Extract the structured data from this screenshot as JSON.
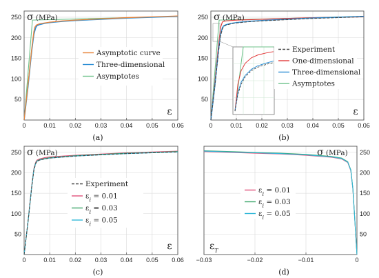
{
  "figure": {
    "background": "#ffffff",
    "frame_color": "#555555",
    "grid_color": "#d8d8d8"
  },
  "chart_data": [
    {
      "panel": "a",
      "sub_label": "(a)",
      "type": "line",
      "ylabel_symbol": "σ",
      "ylabel_unit": "(MPa)",
      "xlabel_symbol": "ε",
      "xlim": [
        0,
        0.06
      ],
      "ylim": [
        0,
        265
      ],
      "xticks": [
        0,
        0.01,
        0.02,
        0.03,
        0.04,
        0.05,
        0.06
      ],
      "xtick_labels": [
        "0",
        "0.01",
        "0.02",
        "0.03",
        "0.04",
        "0.05",
        "0.06"
      ],
      "yticks": [
        50,
        100,
        150,
        200,
        250
      ],
      "ytick_labels": [
        "50",
        "100",
        "150",
        "200",
        "250"
      ],
      "yaxis_side": "left",
      "grid": true,
      "legend": [
        {
          "label": "Asymptotic curve",
          "color": "#e8843a"
        },
        {
          "label": "Three-dimensional",
          "color": "#2d8fd5"
        },
        {
          "label": "Asymptotes",
          "color": "#6cc28a"
        }
      ],
      "series": [
        {
          "color": "#6cc28a",
          "width": 1.1,
          "dash": "",
          "x": [
            0,
            0.00325,
            0.06
          ],
          "y": [
            0,
            243,
            252
          ]
        },
        {
          "color": "#2d8fd5",
          "width": 1.6,
          "dash": "",
          "x": [
            0,
            0.0015,
            0.003,
            0.0038,
            0.0045,
            0.005,
            0.006,
            0.008,
            0.01,
            0.015,
            0.02,
            0.03,
            0.04,
            0.05,
            0.06
          ],
          "y": [
            0,
            80,
            170,
            208,
            224,
            229,
            232,
            235,
            237,
            240,
            242,
            245,
            248,
            250,
            252
          ]
        },
        {
          "color": "#e8843a",
          "width": 1.3,
          "dash": "",
          "x": [
            0,
            0.0015,
            0.003,
            0.0038,
            0.0042,
            0.0048,
            0.006,
            0.008,
            0.01,
            0.015,
            0.02,
            0.03,
            0.04,
            0.05,
            0.06
          ],
          "y": [
            0,
            85,
            175,
            215,
            226,
            231,
            234,
            236,
            238,
            241,
            243,
            246,
            249,
            251,
            253
          ]
        }
      ]
    },
    {
      "panel": "b",
      "sub_label": "(b)",
      "type": "line",
      "ylabel_symbol": "σ",
      "ylabel_unit": "(MPa)",
      "xlabel_symbol": "ε",
      "xlim": [
        0,
        0.06
      ],
      "ylim": [
        0,
        265
      ],
      "xticks": [
        0,
        0.01,
        0.02,
        0.03,
        0.04,
        0.05,
        0.06
      ],
      "xtick_labels": [
        "0",
        "0.01",
        "0.02",
        "0.03",
        "0.04",
        "0.05",
        "0.06"
      ],
      "yticks": [
        50,
        100,
        150,
        200,
        250
      ],
      "ytick_labels": [
        "50",
        "100",
        "150",
        "200",
        "250"
      ],
      "yaxis_side": "left",
      "grid": true,
      "legend": [
        {
          "label": "Experiment",
          "color": "#444444",
          "dash": "4,2"
        },
        {
          "label": "One-dimensional",
          "color": "#e23a3a"
        },
        {
          "label": "Three-dimensional",
          "color": "#2d8fd5"
        },
        {
          "label": "Asymptotes",
          "color": "#6cc28a"
        }
      ],
      "series": [
        {
          "color": "#6cc28a",
          "width": 1.1,
          "dash": "",
          "x": [
            0,
            0.00325,
            0.06
          ],
          "y": [
            0,
            243,
            252
          ]
        },
        {
          "color": "#e23a3a",
          "width": 1.2,
          "dash": "",
          "x": [
            0,
            0.0015,
            0.003,
            0.0038,
            0.0045,
            0.005,
            0.006,
            0.008,
            0.01,
            0.02,
            0.03,
            0.04,
            0.05,
            0.06
          ],
          "y": [
            0,
            88,
            182,
            225,
            238,
            240,
            241,
            242,
            243,
            245,
            247,
            249,
            250,
            251
          ]
        },
        {
          "color": "#2d8fd5",
          "width": 1.5,
          "dash": "",
          "x": [
            0,
            0.0015,
            0.003,
            0.0038,
            0.0045,
            0.005,
            0.006,
            0.008,
            0.01,
            0.015,
            0.02,
            0.03,
            0.04,
            0.05,
            0.06
          ],
          "y": [
            0,
            80,
            170,
            208,
            224,
            229,
            232,
            235,
            237,
            240,
            242,
            245,
            248,
            250,
            252
          ]
        },
        {
          "color": "#444444",
          "width": 1.0,
          "dash": "4,2",
          "x": [
            0,
            0.0015,
            0.003,
            0.0038,
            0.0045,
            0.005,
            0.006,
            0.008,
            0.01,
            0.015,
            0.02,
            0.03,
            0.04,
            0.05,
            0.06
          ],
          "y": [
            0,
            78,
            166,
            204,
            221,
            227,
            231,
            234,
            236,
            239,
            241,
            244,
            247,
            249,
            251
          ]
        }
      ],
      "inset": {
        "xlim": [
          0,
          1
        ],
        "ylim": [
          0,
          1
        ],
        "series": [
          {
            "color": "#6cc28a",
            "width": 1.0,
            "dash": "",
            "x": [
              0.05,
              0.25,
              0.98
            ],
            "y": [
              0.05,
              1.0,
              1.0
            ]
          },
          {
            "color": "#e23a3a",
            "width": 1.0,
            "dash": "",
            "x": [
              0.05,
              0.12,
              0.2,
              0.3,
              0.45,
              0.6,
              0.8,
              0.98
            ],
            "y": [
              0.05,
              0.45,
              0.65,
              0.76,
              0.84,
              0.88,
              0.91,
              0.93
            ]
          },
          {
            "color": "#2d8fd5",
            "width": 1.0,
            "dash": "",
            "x": [
              0.05,
              0.12,
              0.2,
              0.3,
              0.45,
              0.6,
              0.8,
              0.98
            ],
            "y": [
              0.05,
              0.32,
              0.48,
              0.58,
              0.67,
              0.72,
              0.76,
              0.79
            ]
          },
          {
            "color": "#444444",
            "width": 0.9,
            "dash": "3,2",
            "x": [
              0.05,
              0.12,
              0.2,
              0.3,
              0.45,
              0.6,
              0.8,
              0.98
            ],
            "y": [
              0.05,
              0.3,
              0.45,
              0.56,
              0.65,
              0.7,
              0.74,
              0.77
            ]
          }
        ]
      }
    },
    {
      "panel": "c",
      "sub_label": "(c)",
      "type": "line",
      "ylabel_symbol": "σ",
      "ylabel_unit": "(MPa)",
      "xlabel_symbol": "ε",
      "xlim": [
        0,
        0.06
      ],
      "ylim": [
        0,
        265
      ],
      "xticks": [
        0,
        0.01,
        0.02,
        0.03,
        0.04,
        0.05,
        0.06
      ],
      "xtick_labels": [
        "0",
        "0.01",
        "0.02",
        "0.03",
        "0.04",
        "0.05",
        "0.06"
      ],
      "yticks": [
        50,
        100,
        150,
        200,
        250
      ],
      "ytick_labels": [
        "50",
        "100",
        "150",
        "200",
        "250"
      ],
      "yaxis_side": "left",
      "grid": true,
      "legend": [
        {
          "label": "Experiment",
          "color": "#444444",
          "dash": "4,2"
        },
        {
          "label": "εi = 0.01",
          "color": "#e0507a"
        },
        {
          "label": "εi = 0.03",
          "color": "#3aa56a"
        },
        {
          "label": "εi = 0.05",
          "color": "#33b8d8"
        }
      ],
      "series": [
        {
          "color": "#e0507a",
          "width": 1.1,
          "dash": "",
          "x": [
            0,
            0.0015,
            0.003,
            0.0038,
            0.0045,
            0.005,
            0.006,
            0.008,
            0.01,
            0.02,
            0.03,
            0.04,
            0.05,
            0.06
          ],
          "y": [
            0,
            80,
            170,
            210,
            226,
            231,
            234,
            237,
            239,
            243,
            246,
            249,
            251,
            253
          ]
        },
        {
          "color": "#3aa56a",
          "width": 1.1,
          "dash": "",
          "x": [
            0,
            0.0015,
            0.003,
            0.0038,
            0.0045,
            0.005,
            0.006,
            0.008,
            0.01,
            0.02,
            0.03,
            0.04,
            0.05,
            0.06
          ],
          "y": [
            0,
            79,
            168,
            208,
            224,
            229,
            232,
            235,
            237,
            242,
            245,
            248,
            250,
            252
          ]
        },
        {
          "color": "#33b8d8",
          "width": 1.1,
          "dash": "",
          "x": [
            0,
            0.0015,
            0.003,
            0.0038,
            0.0045,
            0.005,
            0.006,
            0.008,
            0.01,
            0.02,
            0.03,
            0.04,
            0.05,
            0.06
          ],
          "y": [
            0,
            79,
            167,
            207,
            223,
            228,
            231,
            234,
            236,
            241,
            244,
            247,
            249,
            251
          ]
        },
        {
          "color": "#444444",
          "width": 1.0,
          "dash": "4,2",
          "x": [
            0,
            0.0015,
            0.003,
            0.0038,
            0.0045,
            0.005,
            0.006,
            0.008,
            0.01,
            0.02,
            0.03,
            0.04,
            0.05,
            0.06
          ],
          "y": [
            0,
            78,
            166,
            205,
            222,
            228,
            231,
            234,
            236,
            241,
            244,
            247,
            249,
            251
          ]
        }
      ]
    },
    {
      "panel": "d",
      "sub_label": "(d)",
      "type": "line",
      "ylabel_symbol": "σ",
      "ylabel_unit": "(MPa)",
      "xlabel_symbol": "εT",
      "xlim": [
        -0.03,
        0
      ],
      "ylim": [
        0,
        265
      ],
      "xticks": [
        -0.03,
        -0.02,
        -0.01,
        0
      ],
      "xtick_labels": [
        "−0.03",
        "−0.02",
        "−0.01",
        "0"
      ],
      "yticks": [
        50,
        100,
        150,
        200,
        250
      ],
      "ytick_labels": [
        "50",
        "100",
        "150",
        "200",
        "250"
      ],
      "yaxis_side": "right",
      "grid": true,
      "legend": [
        {
          "label": "εi = 0.01",
          "color": "#e0507a"
        },
        {
          "label": "εi = 0.03",
          "color": "#3aa56a"
        },
        {
          "label": "εi = 0.05",
          "color": "#33b8d8"
        }
      ],
      "series": [
        {
          "color": "#e0507a",
          "width": 1.1,
          "dash": "",
          "x": [
            -0.03,
            -0.025,
            -0.02,
            -0.015,
            -0.01,
            -0.005,
            -0.003,
            -0.0018,
            -0.0012,
            -0.0008,
            -0.0004,
            0
          ],
          "y": [
            252,
            250,
            248,
            246,
            243,
            238,
            234,
            225,
            205,
            160,
            80,
            0
          ]
        },
        {
          "color": "#3aa56a",
          "width": 1.1,
          "dash": "",
          "x": [
            -0.03,
            -0.025,
            -0.02,
            -0.015,
            -0.01,
            -0.005,
            -0.003,
            -0.0018,
            -0.0012,
            -0.0008,
            -0.0004,
            0
          ],
          "y": [
            254,
            252,
            250,
            248,
            245,
            240,
            236,
            227,
            207,
            162,
            82,
            0
          ]
        },
        {
          "color": "#33b8d8",
          "width": 1.1,
          "dash": "",
          "x": [
            -0.03,
            -0.025,
            -0.02,
            -0.015,
            -0.01,
            -0.005,
            -0.003,
            -0.0018,
            -0.0012,
            -0.0008,
            -0.0004,
            0
          ],
          "y": [
            253,
            251,
            249,
            247,
            244,
            239,
            235,
            226,
            206,
            161,
            81,
            0
          ]
        }
      ]
    }
  ]
}
